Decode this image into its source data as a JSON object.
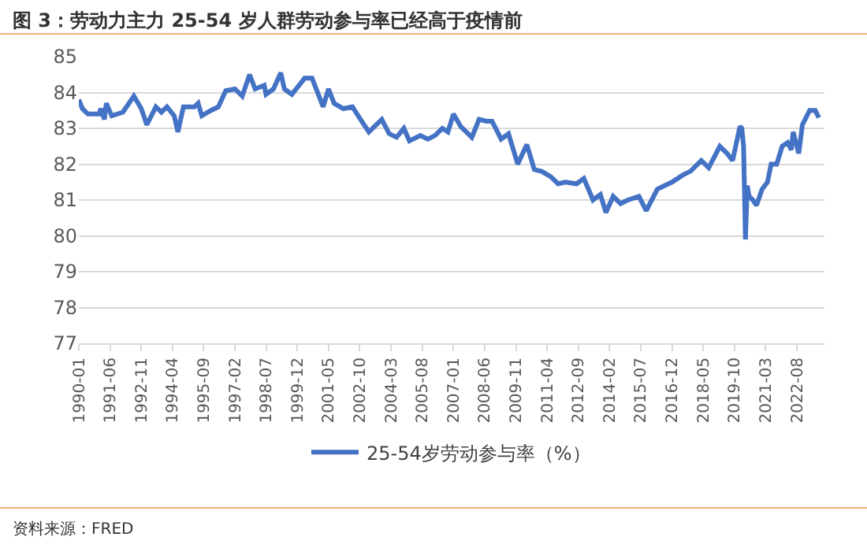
{
  "chart_data": {
    "type": "line",
    "title": "图 3：劳动力主力 25-54 岁人群劳动参与率已经高于疫情前",
    "annotations": [
      "资料来源：FRED"
    ],
    "x": [
      "1990-01",
      "1990-03",
      "1990-06",
      "1990-12",
      "1991-01",
      "1991-03",
      "1991-04",
      "1991-07",
      "1992-01",
      "1992-07",
      "1992-11",
      "1993-02",
      "1993-07",
      "1993-10",
      "1994-01",
      "1994-05",
      "1994-07",
      "1994-10",
      "1995-04",
      "1995-06",
      "1995-08",
      "1996-01",
      "1996-05",
      "1996-09",
      "1997-02",
      "1997-06",
      "1997-10",
      "1998-01",
      "1998-06",
      "1998-07",
      "1998-11",
      "1999-03",
      "1999-05",
      "1999-09",
      "2000-04",
      "2000-08",
      "2001-02",
      "2001-05",
      "2001-08",
      "2002-01",
      "2002-06",
      "2002-11",
      "2003-03",
      "2003-10",
      "2004-02",
      "2004-06",
      "2004-10",
      "2005-01",
      "2005-07",
      "2005-11",
      "2006-03",
      "2006-07",
      "2006-10",
      "2007-01",
      "2007-05",
      "2007-11",
      "2008-03",
      "2008-07",
      "2008-10",
      "2009-03",
      "2009-07",
      "2009-12",
      "2010-05",
      "2010-09",
      "2011-01",
      "2011-06",
      "2011-10",
      "2012-02",
      "2012-08",
      "2012-12",
      "2013-05",
      "2013-09",
      "2013-12",
      "2014-04",
      "2014-08",
      "2014-12",
      "2015-06",
      "2015-10",
      "2016-04",
      "2016-08",
      "2016-12",
      "2017-06",
      "2017-10",
      "2018-04",
      "2018-08",
      "2019-02",
      "2019-06",
      "2019-09",
      "2020-01",
      "2020-02",
      "2020-03",
      "2020-04",
      "2020-05",
      "2020-06",
      "2020-08",
      "2020-10",
      "2021-01",
      "2021-04",
      "2021-06",
      "2021-09",
      "2021-12",
      "2022-03",
      "2022-05",
      "2022-06",
      "2022-09",
      "2022-11",
      "2023-03",
      "2023-06",
      "2023-08"
    ],
    "series": [
      {
        "name": "25-54岁劳动参与率（%）",
        "color": "#4472c4",
        "values": [
          83.8,
          83.55,
          83.4,
          83.4,
          83.55,
          83.25,
          83.7,
          83.35,
          83.45,
          83.9,
          83.55,
          83.1,
          83.6,
          83.45,
          83.6,
          83.35,
          82.9,
          83.6,
          83.6,
          83.7,
          83.35,
          83.5,
          83.6,
          84.05,
          84.1,
          83.9,
          84.5,
          84.1,
          84.2,
          83.95,
          84.1,
          84.55,
          84.1,
          83.95,
          84.4,
          84.4,
          83.6,
          84.1,
          83.7,
          83.55,
          83.6,
          83.2,
          82.9,
          83.25,
          82.85,
          82.75,
          83.0,
          82.65,
          82.8,
          82.7,
          82.8,
          83.0,
          82.9,
          83.4,
          83.05,
          82.75,
          83.25,
          83.2,
          83.2,
          82.7,
          82.85,
          82.0,
          82.55,
          81.85,
          81.8,
          81.65,
          81.45,
          81.5,
          81.45,
          81.6,
          81.0,
          81.15,
          80.65,
          81.1,
          80.9,
          81.0,
          81.1,
          80.7,
          81.3,
          81.4,
          81.5,
          81.7,
          81.8,
          82.1,
          81.9,
          82.5,
          82.3,
          82.1,
          83.05,
          83.0,
          82.5,
          79.9,
          81.4,
          81.1,
          81.0,
          80.85,
          81.3,
          81.5,
          82.0,
          82.0,
          82.5,
          82.6,
          82.4,
          82.9,
          82.3,
          83.1,
          83.5,
          83.5,
          83.3
        ]
      }
    ],
    "xlim": [
      "1990-01",
      "2023-11"
    ],
    "xticks": [
      "1990-01",
      "1991-06",
      "1992-11",
      "1994-04",
      "1995-09",
      "1997-02",
      "1998-07",
      "1999-12",
      "2001-05",
      "2002-10",
      "2004-03",
      "2005-08",
      "2007-01",
      "2008-06",
      "2009-11",
      "2011-04",
      "2012-09",
      "2014-02",
      "2015-07",
      "2016-12",
      "2018-05",
      "2019-10",
      "2021-03",
      "2022-08"
    ],
    "ylim": [
      77,
      85
    ],
    "yticks": [
      77,
      78,
      79,
      80,
      81,
      82,
      83,
      84,
      85
    ],
    "grid": "y",
    "legend": "bottom",
    "line_style": "solid",
    "marker": "none"
  }
}
